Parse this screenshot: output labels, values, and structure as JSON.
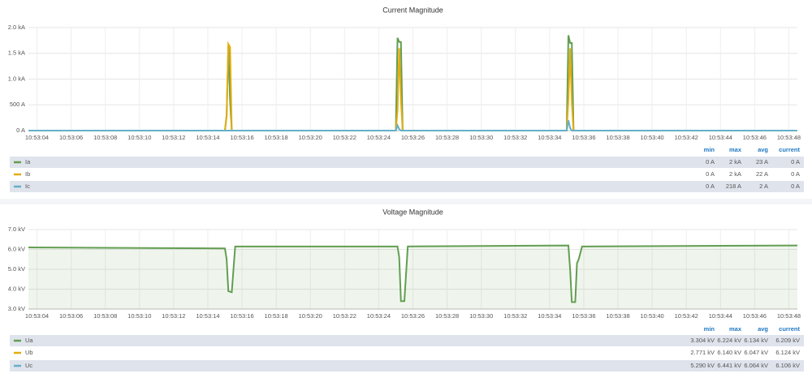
{
  "chart_data": [
    {
      "type": "line",
      "title": "Current Magnitude",
      "x": [
        "10:53:03.5",
        "10:53:15.0",
        "10:53:15.1",
        "10:53:15.2",
        "10:53:15.3",
        "10:53:15.4",
        "10:53:25.0",
        "10:53:25.1",
        "10:53:25.2",
        "10:53:25.3",
        "10:53:25.4",
        "10:53:35.0",
        "10:53:35.1",
        "10:53:35.2",
        "10:53:35.3",
        "10:53:35.4",
        "10:53:48.5"
      ],
      "xlim": [
        "10:53:03.5",
        "10:53:48.5"
      ],
      "xticks": [
        "10:53:04",
        "10:53:06",
        "10:53:08",
        "10:53:10",
        "10:53:12",
        "10:53:14",
        "10:53:16",
        "10:53:18",
        "10:53:20",
        "10:53:22",
        "10:53:24",
        "10:53:26",
        "10:53:28",
        "10:53:30",
        "10:53:32",
        "10:53:34",
        "10:53:36",
        "10:53:38",
        "10:53:40",
        "10:53:42",
        "10:53:44",
        "10:53:46",
        "10:53:48"
      ],
      "ylim": [
        0,
        2000
      ],
      "yticks": [
        {
          "value": 0,
          "label": "0 A"
        },
        {
          "value": 500,
          "label": "500 A"
        },
        {
          "value": 1000,
          "label": "1.0 kA"
        },
        {
          "value": 1500,
          "label": "1.5 kA"
        },
        {
          "value": 2000,
          "label": "2.0 kA"
        }
      ],
      "grid": true,
      "fill": false,
      "legend_columns": [
        "min",
        "max",
        "avg",
        "current"
      ],
      "series": [
        {
          "name": "Ia",
          "color": "#629e51",
          "values": [
            0,
            0,
            300,
            1650,
            600,
            0,
            0,
            1800,
            1720,
            1720,
            0,
            0,
            1850,
            1700,
            1700,
            0,
            0
          ],
          "legend_values": [
            "0 A",
            "2 kA",
            "23 A",
            "0 A"
          ]
        },
        {
          "name": "Ib",
          "color": "#e5ac0e",
          "values": [
            0,
            0,
            280,
            1680,
            1620,
            0,
            0,
            400,
            1600,
            600,
            0,
            0,
            600,
            1600,
            550,
            0,
            0
          ],
          "legend_values": [
            "0 A",
            "2 kA",
            "22 A",
            "0 A"
          ]
        },
        {
          "name": "Ic",
          "color": "#64b0c8",
          "values": [
            0,
            0,
            0,
            0,
            0,
            0,
            0,
            100,
            30,
            0,
            0,
            0,
            200,
            50,
            0,
            0,
            0
          ],
          "legend_values": [
            "0 A",
            "218 A",
            "2 A",
            "0 A"
          ]
        }
      ]
    },
    {
      "type": "line",
      "title": "Voltage Magnitude",
      "x": [
        "10:53:03.5",
        "10:53:15.0",
        "10:53:15.1",
        "10:53:15.2",
        "10:53:15.4",
        "10:53:15.6",
        "10:53:25.1",
        "10:53:25.2",
        "10:53:25.3",
        "10:53:25.5",
        "10:53:25.7",
        "10:53:35.1",
        "10:53:35.2",
        "10:53:35.3",
        "10:53:35.5",
        "10:53:35.6",
        "10:53:35.7",
        "10:53:35.9",
        "10:53:48.5"
      ],
      "xlim": [
        "10:53:03.5",
        "10:53:48.5"
      ],
      "xticks": [
        "10:53:04",
        "10:53:06",
        "10:53:08",
        "10:53:10",
        "10:53:12",
        "10:53:14",
        "10:53:16",
        "10:53:18",
        "10:53:20",
        "10:53:22",
        "10:53:24",
        "10:53:26",
        "10:53:28",
        "10:53:30",
        "10:53:32",
        "10:53:34",
        "10:53:36",
        "10:53:38",
        "10:53:40",
        "10:53:42",
        "10:53:44",
        "10:53:46",
        "10:53:48"
      ],
      "ylim": [
        3,
        7
      ],
      "yticks": [
        {
          "value": 3,
          "label": "3.0 kV"
        },
        {
          "value": 4,
          "label": "4.0 kV"
        },
        {
          "value": 5,
          "label": "5.0 kV"
        },
        {
          "value": 6,
          "label": "6.0 kV"
        },
        {
          "value": 7,
          "label": "7.0 kV"
        }
      ],
      "grid": true,
      "fill": true,
      "legend_columns": [
        "min",
        "max",
        "avg",
        "current"
      ],
      "series": [
        {
          "name": "Ua",
          "color": "#629e51",
          "values": [
            6.1,
            6.05,
            5.5,
            3.9,
            3.85,
            6.15,
            6.15,
            5.6,
            3.4,
            3.4,
            6.15,
            6.2,
            5.0,
            3.35,
            3.35,
            5.3,
            5.5,
            6.15,
            6.2
          ],
          "legend_values": [
            "3.304 kV",
            "6.224 kV",
            "6.134 kV",
            "6.209 kV"
          ]
        },
        {
          "name": "Ub",
          "color": "#e5ac0e",
          "hidden": true,
          "legend_values": [
            "2.771 kV",
            "6.140 kV",
            "6.047 kV",
            "6.124 kV"
          ]
        },
        {
          "name": "Uc",
          "color": "#64b0c8",
          "hidden": true,
          "legend_values": [
            "5.290 kV",
            "6.441 kV",
            "6.064 kV",
            "6.106 kV"
          ]
        }
      ]
    }
  ]
}
